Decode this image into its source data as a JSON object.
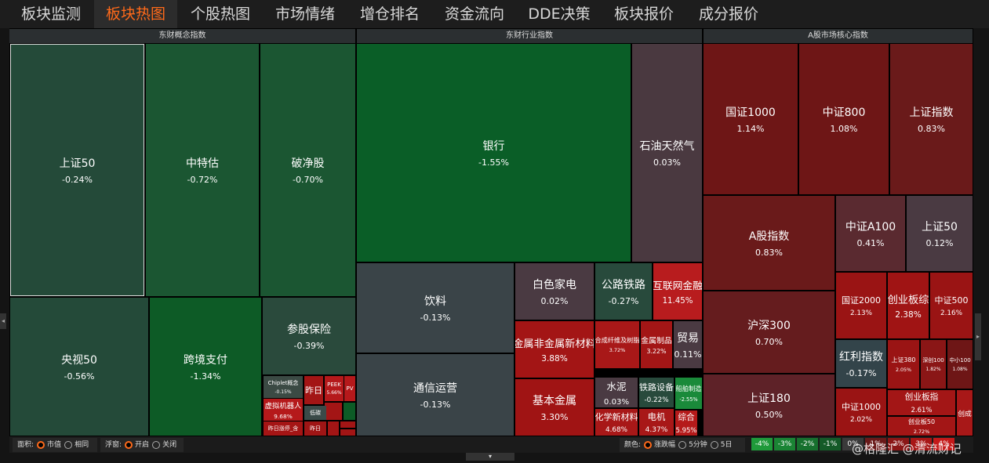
{
  "tabs": [
    "板块监测",
    "板块热图",
    "个股热图",
    "市场情绪",
    "增仓排名",
    "资金流向",
    "DDE决策",
    "板块报价",
    "成分报价"
  ],
  "active_tab": 1,
  "panels": [
    {
      "title": "东财概念指数",
      "tiles": [
        {
          "name": "上证50",
          "change": "-0.24%",
          "color": "#244a39"
        },
        {
          "name": "中特估",
          "change": "-0.72%",
          "color": "#1b5632"
        },
        {
          "name": "破净股",
          "change": "-0.70%",
          "color": "#1b5632"
        },
        {
          "name": "央视50",
          "change": "-0.56%",
          "color": "#244a39"
        },
        {
          "name": "跨境支付",
          "change": "-1.34%",
          "color": "#0d5b26"
        },
        {
          "name": "参股保险",
          "change": "-0.39%",
          "color": "#2a4a3c"
        },
        {
          "name": "Chiplet概念",
          "change": "-0.15%",
          "color": "#3b4a44"
        },
        {
          "name": "昨日",
          "color": "#a31515"
        },
        {
          "name": "PEEK",
          "change": "5.66%",
          "color": "#b5191b"
        },
        {
          "name": "PV",
          "color": "#b5191b"
        },
        {
          "name": "虚拟机器人",
          "change": "9.68%",
          "color": "#b5191b"
        },
        {
          "name": "低碳",
          "color": "#3a4a48"
        },
        {
          "name": "昨日涨停_含",
          "color": "#a51515"
        },
        {
          "name": "昨日",
          "color": "#9f1515"
        }
      ]
    },
    {
      "title": "东财行业指数",
      "tiles": [
        {
          "name": "银行",
          "change": "-1.55%",
          "color": "#0a5e27"
        },
        {
          "name": "石油天然气",
          "change": "0.03%",
          "color": "#4a3940"
        },
        {
          "name": "饮料",
          "change": "-0.13%",
          "color": "#3a4448"
        },
        {
          "name": "通信运营",
          "change": "-0.13%",
          "color": "#3a4448"
        },
        {
          "name": "白色家电",
          "change": "0.02%",
          "color": "#4a3a42"
        },
        {
          "name": "公路铁路",
          "change": "-0.27%",
          "color": "#284a3c"
        },
        {
          "name": "互联网金融",
          "change": "11.45%",
          "color": "#b81c1e"
        },
        {
          "name": "金属非金属新材料",
          "change": "3.88%",
          "color": "#a31515"
        },
        {
          "name": "合成纤维及树脂",
          "change": "3.72%",
          "color": "#a81818"
        },
        {
          "name": "金属制品",
          "change": "3.22%",
          "color": "#a31616"
        },
        {
          "name": "贸易",
          "change": "0.11%",
          "color": "#4a3a42"
        },
        {
          "name": "基本金属",
          "change": "3.30%",
          "color": "#a01414"
        },
        {
          "name": "水泥",
          "change": "0.03%",
          "color": "#4a3a42"
        },
        {
          "name": "铁路设备",
          "change": "-0.22%",
          "color": "#284a3c"
        },
        {
          "name": "船舶制造",
          "change": "-2.55%",
          "color": "#1a8a3a"
        },
        {
          "name": "化学新材料",
          "change": "4.68%",
          "color": "#a81818"
        },
        {
          "name": "电机",
          "change": "4.37%",
          "color": "#a81818"
        },
        {
          "name": "综合",
          "change": "5.95%",
          "color": "#b51a1a"
        }
      ]
    },
    {
      "title": "A股市场核心指数",
      "tiles": [
        {
          "name": "国证1000",
          "change": "1.14%",
          "color": "#6e1616"
        },
        {
          "name": "中证800",
          "change": "1.08%",
          "color": "#6e1616"
        },
        {
          "name": "上证指数",
          "change": "0.83%",
          "color": "#6a1a1a"
        },
        {
          "name": "A股指数",
          "change": "0.83%",
          "color": "#6a1a1a"
        },
        {
          "name": "中证A100",
          "change": "0.41%",
          "color": "#5a2a30"
        },
        {
          "name": "上证50",
          "change": "0.12%",
          "color": "#4a3a42"
        },
        {
          "name": "沪深300",
          "change": "0.70%",
          "color": "#651c1e"
        },
        {
          "name": "国证2000",
          "change": "2.13%",
          "color": "#9a1414"
        },
        {
          "name": "创业板综",
          "change": "2.38%",
          "color": "#a01414"
        },
        {
          "name": "中证500",
          "change": "2.16%",
          "color": "#9a1414"
        },
        {
          "name": "红利指数",
          "change": "-0.17%",
          "color": "#33444a"
        },
        {
          "name": "上证380",
          "change": "2.05%",
          "color": "#9a1414"
        },
        {
          "name": "深创100",
          "change": "1.82%",
          "color": "#8a1616"
        },
        {
          "name": "中小100",
          "change": "1.08%",
          "color": "#6e1616"
        },
        {
          "name": "上证180",
          "change": "0.50%",
          "color": "#5e2228"
        },
        {
          "name": "中证1000",
          "change": "2.02%",
          "color": "#9a1414"
        },
        {
          "name": "创业板指",
          "change": "2.61%",
          "color": "#a31616"
        },
        {
          "name": "创业板50",
          "change": "2.72%",
          "color": "#a31616"
        },
        {
          "name": "创成",
          "color": "#a81818"
        }
      ]
    }
  ],
  "bottom": {
    "area_label": "面积:",
    "area_options": [
      "市值",
      "相同"
    ],
    "area_selected": 0,
    "float_label": "浮窗:",
    "float_options": [
      "开启",
      "关闭"
    ],
    "float_selected": 0,
    "color_label": "颜色:",
    "color_options": [
      "涨跌幅",
      "5分钟",
      "5日"
    ],
    "color_selected": 0,
    "scale": [
      {
        "label": "-4%",
        "color": "#1f9a3a"
      },
      {
        "label": "-3%",
        "color": "#1a8434"
      },
      {
        "label": "-2%",
        "color": "#17702e"
      },
      {
        "label": "-1%",
        "color": "#145a28"
      },
      {
        "label": "0%",
        "color": "#3a3a3a"
      },
      {
        "label": "1%",
        "color": "#6a1a1a"
      },
      {
        "label": "2%",
        "color": "#8a1616"
      },
      {
        "label": "3%",
        "color": "#a81616"
      },
      {
        "label": "4%",
        "color": "#c41a1a"
      }
    ],
    "watermark": "@格隆汇 @清流财记"
  }
}
